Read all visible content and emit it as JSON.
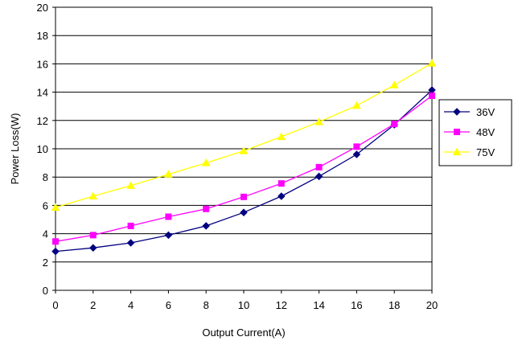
{
  "chart_data": {
    "type": "line",
    "title": "",
    "xlabel": "Output Current(A)",
    "ylabel": "Power Loss(W)",
    "xlim": [
      0,
      20
    ],
    "ylim": [
      0,
      20
    ],
    "xticks": [
      "0",
      "2",
      "4",
      "6",
      "8",
      "10",
      "12",
      "14",
      "16",
      "18",
      "20"
    ],
    "yticks": [
      "0",
      "2",
      "4",
      "6",
      "8",
      "10",
      "12",
      "14",
      "16",
      "18",
      "20"
    ],
    "grid": "horizontal",
    "legend_position": "right",
    "x": [
      0,
      2,
      4,
      6,
      8,
      10,
      12,
      14,
      16,
      18,
      20
    ],
    "series": [
      {
        "name": "36V",
        "color": "#000080",
        "marker": "diamond",
        "values": [
          2.75,
          3.0,
          3.35,
          3.9,
          4.55,
          5.5,
          6.65,
          8.05,
          9.6,
          11.7,
          14.15
        ]
      },
      {
        "name": "48V",
        "color": "#FF00FF",
        "marker": "square",
        "values": [
          3.45,
          3.9,
          4.55,
          5.2,
          5.75,
          6.6,
          7.55,
          8.7,
          10.15,
          11.75,
          13.75
        ]
      },
      {
        "name": "75V",
        "color": "#FFFF00",
        "marker": "triangle",
        "values": [
          5.85,
          6.65,
          7.4,
          8.2,
          9.0,
          9.85,
          10.85,
          11.9,
          13.05,
          14.5,
          16.05
        ]
      }
    ]
  }
}
